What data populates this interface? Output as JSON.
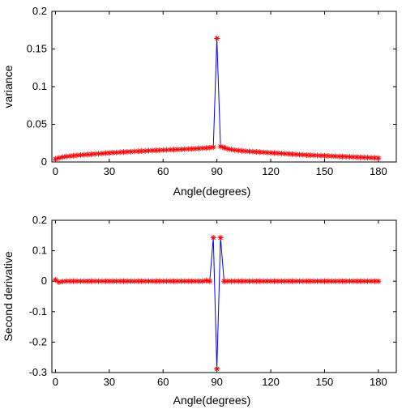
{
  "chart_data": [
    {
      "type": "line",
      "xlabel": "Angle(degrees)",
      "ylabel": "variance",
      "xlim": [
        -2,
        190
      ],
      "ylim": [
        0,
        0.2
      ],
      "xticks": [
        0,
        30,
        60,
        90,
        120,
        150,
        180
      ],
      "xtick_labels": [
        "0",
        "30",
        "60",
        "90",
        "120",
        "150",
        "180"
      ],
      "yticks": [
        0,
        0.05,
        0.1,
        0.15,
        0.2
      ],
      "ytick_labels": [
        "0",
        "0.05",
        "0.1",
        "0.15",
        "0.2"
      ],
      "grid": false,
      "line_color": "#0000ff",
      "marker_color": "#ff0000",
      "marker": "asterisk",
      "x": [
        0,
        2,
        4,
        6,
        8,
        10,
        12,
        14,
        16,
        18,
        20,
        22,
        24,
        26,
        28,
        30,
        32,
        34,
        36,
        38,
        40,
        42,
        44,
        46,
        48,
        50,
        52,
        54,
        56,
        58,
        60,
        62,
        64,
        66,
        68,
        70,
        72,
        74,
        76,
        78,
        80,
        82,
        84,
        86,
        88,
        90,
        92,
        94,
        96,
        98,
        100,
        102,
        104,
        106,
        108,
        110,
        112,
        114,
        116,
        118,
        120,
        122,
        124,
        126,
        128,
        130,
        132,
        134,
        136,
        138,
        140,
        142,
        144,
        146,
        148,
        150,
        152,
        154,
        156,
        158,
        160,
        162,
        164,
        166,
        168,
        170,
        172,
        174,
        176,
        178,
        180
      ],
      "y": [
        0.004,
        0.0055,
        0.0065,
        0.0072,
        0.0078,
        0.0083,
        0.0088,
        0.0092,
        0.0096,
        0.01,
        0.0103,
        0.0107,
        0.011,
        0.0113,
        0.0117,
        0.012,
        0.0123,
        0.0126,
        0.0129,
        0.0132,
        0.0135,
        0.0137,
        0.014,
        0.0142,
        0.0145,
        0.0147,
        0.015,
        0.0152,
        0.0154,
        0.0156,
        0.0158,
        0.016,
        0.0162,
        0.0164,
        0.0166,
        0.0168,
        0.017,
        0.0172,
        0.0174,
        0.0177,
        0.018,
        0.0183,
        0.0186,
        0.019,
        0.0195,
        0.164,
        0.0205,
        0.019,
        0.0175,
        0.0165,
        0.0158,
        0.0152,
        0.0148,
        0.0144,
        0.014,
        0.0137,
        0.0134,
        0.0131,
        0.0128,
        0.0125,
        0.0122,
        0.0119,
        0.0116,
        0.0113,
        0.011,
        0.0107,
        0.0104,
        0.0101,
        0.0098,
        0.0095,
        0.0092,
        0.009,
        0.0088,
        0.0086,
        0.0084,
        0.0082,
        0.008,
        0.0078,
        0.0076,
        0.0074,
        0.0072,
        0.007,
        0.0068,
        0.0066,
        0.0064,
        0.0062,
        0.006,
        0.0058,
        0.0056,
        0.0054,
        0.0052
      ]
    },
    {
      "type": "line",
      "xlabel": "Angle(degrees)",
      "ylabel": "Second derivative",
      "xlim": [
        -2,
        190
      ],
      "ylim": [
        -0.3,
        0.2
      ],
      "xticks": [
        0,
        30,
        60,
        90,
        120,
        150,
        180
      ],
      "xtick_labels": [
        "0",
        "30",
        "60",
        "90",
        "120",
        "150",
        "180"
      ],
      "yticks": [
        -0.3,
        -0.2,
        -0.1,
        0,
        0.1,
        0.2
      ],
      "ytick_labels": [
        "-0.3",
        "-0.2",
        "-0.1",
        "0",
        "0.1",
        "0.2"
      ],
      "grid": false,
      "line_color": "#0000ff",
      "marker_color": "#ff0000",
      "marker": "asterisk",
      "x": [
        0,
        2,
        4,
        6,
        8,
        10,
        12,
        14,
        16,
        18,
        20,
        22,
        24,
        26,
        28,
        30,
        32,
        34,
        36,
        38,
        40,
        42,
        44,
        46,
        48,
        50,
        52,
        54,
        56,
        58,
        60,
        62,
        64,
        66,
        68,
        70,
        72,
        74,
        76,
        78,
        80,
        82,
        84,
        86,
        88,
        90,
        92,
        94,
        96,
        98,
        100,
        102,
        104,
        106,
        108,
        110,
        112,
        114,
        116,
        118,
        120,
        122,
        124,
        126,
        128,
        130,
        132,
        134,
        136,
        138,
        140,
        142,
        144,
        146,
        148,
        150,
        152,
        154,
        156,
        158,
        160,
        162,
        164,
        166,
        168,
        170,
        172,
        174,
        176,
        178,
        180
      ],
      "y": [
        0.004,
        -0.003,
        -0.001,
        0,
        0,
        0,
        0,
        0,
        0,
        0,
        0,
        0,
        0,
        0,
        0,
        0,
        0,
        0,
        0,
        0,
        0,
        0,
        0,
        0,
        0,
        0,
        0,
        0,
        0,
        0,
        0,
        0,
        0,
        0,
        0,
        0,
        0,
        0,
        0,
        0,
        0,
        0,
        0.002,
        0,
        0.143,
        -0.288,
        0.143,
        0,
        0,
        0,
        0,
        0,
        0,
        0,
        0,
        0,
        0,
        0,
        0,
        0,
        0,
        0,
        0,
        0,
        0,
        0,
        0,
        0,
        0,
        0,
        0,
        0,
        0,
        0,
        0,
        0,
        0,
        0,
        0,
        0,
        0,
        0,
        0,
        0,
        0,
        0,
        0,
        0,
        0,
        0,
        0
      ]
    }
  ]
}
